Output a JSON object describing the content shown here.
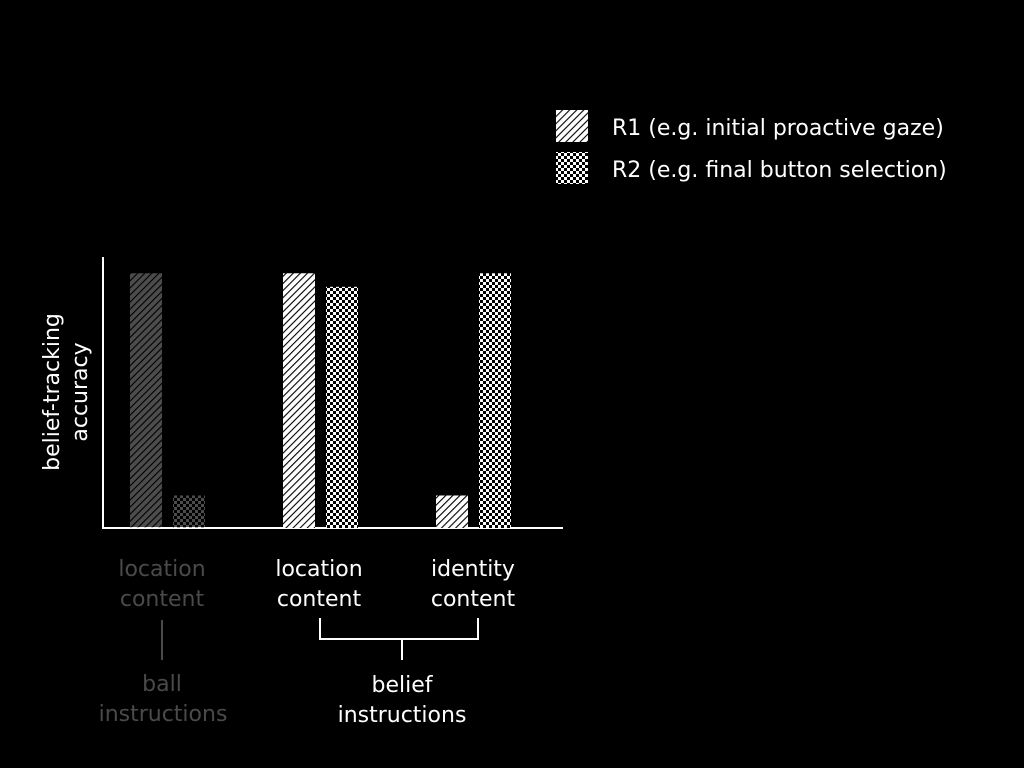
{
  "chart_data": {
    "type": "bar",
    "title": "",
    "ylabel": [
      "belief-tracking",
      "accuracy"
    ],
    "ylim": [
      0,
      1
    ],
    "grid": false,
    "legend_position": "top-right",
    "series": [
      {
        "name": "R1 (e.g. initial proactive gaze)",
        "pattern": "hatch",
        "values": [
          0.94,
          0.94,
          0.12
        ]
      },
      {
        "name": "R2 (e.g. final button selection)",
        "pattern": "checker",
        "values": [
          0.12,
          0.89,
          0.94
        ]
      }
    ],
    "categories": [
      {
        "lines": [
          "location",
          "content"
        ],
        "dimmed": true
      },
      {
        "lines": [
          "location",
          "content"
        ],
        "dimmed": false
      },
      {
        "lines": [
          "identity",
          "content"
        ],
        "dimmed": false
      }
    ],
    "groups": [
      {
        "lines": [
          "ball",
          "instructions"
        ],
        "dimmed": true
      },
      {
        "lines": [
          "belief",
          "instructions"
        ],
        "dimmed": false
      }
    ],
    "colors": {
      "foreground": "#ffffff",
      "dimmed": "#4a4a4a",
      "background": "#000000"
    }
  }
}
